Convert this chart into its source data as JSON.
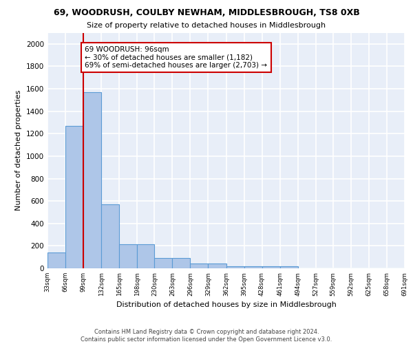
{
  "title1": "69, WOODRUSH, COULBY NEWHAM, MIDDLESBROUGH, TS8 0XB",
  "title2": "Size of property relative to detached houses in Middlesbrough",
  "xlabel": "Distribution of detached houses by size in Middlesbrough",
  "ylabel": "Number of detached properties",
  "bins": [
    33,
    66,
    99,
    132,
    165,
    198,
    230,
    263,
    296,
    329,
    362,
    395,
    428,
    461,
    494,
    527,
    559,
    592,
    625,
    658,
    691
  ],
  "bar_heights": [
    140,
    1270,
    1570,
    570,
    215,
    215,
    95,
    95,
    45,
    45,
    20,
    20,
    20,
    20,
    0,
    0,
    0,
    0,
    0,
    0
  ],
  "bar_color": "#aec6e8",
  "bar_edge_color": "#5b9bd5",
  "vline_x": 99,
  "vline_color": "#cc0000",
  "annotation_text": "69 WOODRUSH: 96sqm\n← 30% of detached houses are smaller (1,182)\n69% of semi-detached houses are larger (2,703) →",
  "annotation_box_color": "#ffffff",
  "annotation_box_edge_color": "#cc0000",
  "bg_color": "#e8eef8",
  "grid_color": "#ffffff",
  "footer_text": "Contains HM Land Registry data © Crown copyright and database right 2024.\nContains public sector information licensed under the Open Government Licence v3.0.",
  "ylim": [
    0,
    2100
  ],
  "yticks": [
    0,
    200,
    400,
    600,
    800,
    1000,
    1200,
    1400,
    1600,
    1800,
    2000
  ],
  "tick_labels": [
    "33sqm",
    "66sqm",
    "99sqm",
    "132sqm",
    "165sqm",
    "198sqm",
    "230sqm",
    "263sqm",
    "296sqm",
    "329sqm",
    "362sqm",
    "395sqm",
    "428sqm",
    "461sqm",
    "494sqm",
    "527sqm",
    "559sqm",
    "592sqm",
    "625sqm",
    "658sqm",
    "691sqm"
  ]
}
